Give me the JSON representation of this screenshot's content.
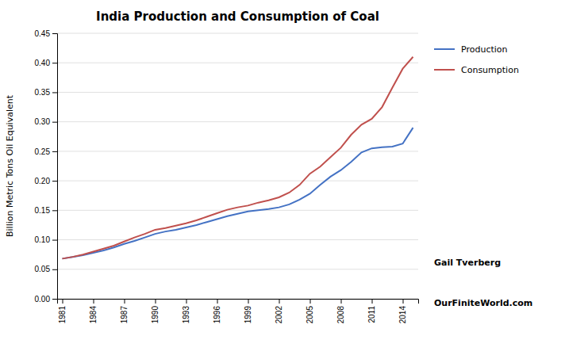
{
  "chart_data": {
    "type": "line",
    "title": "India Production and Consumption of Coal",
    "ylabel": "Billion Metric Tons Oil Equivalent",
    "x": [
      1981,
      1982,
      1983,
      1984,
      1985,
      1986,
      1987,
      1988,
      1989,
      1990,
      1991,
      1992,
      1993,
      1994,
      1995,
      1996,
      1997,
      1998,
      1999,
      2000,
      2001,
      2002,
      2003,
      2004,
      2005,
      2006,
      2007,
      2008,
      2009,
      2010,
      2011,
      2012,
      2013,
      2014,
      2015
    ],
    "series": [
      {
        "name": "Production",
        "color": "#4472C4",
        "values": [
          0.068,
          0.071,
          0.074,
          0.078,
          0.082,
          0.087,
          0.093,
          0.098,
          0.104,
          0.11,
          0.114,
          0.117,
          0.121,
          0.125,
          0.13,
          0.135,
          0.14,
          0.144,
          0.148,
          0.15,
          0.152,
          0.155,
          0.16,
          0.168,
          0.178,
          0.193,
          0.207,
          0.218,
          0.232,
          0.248,
          0.255,
          0.257,
          0.258,
          0.263,
          0.29
        ]
      },
      {
        "name": "Consumption",
        "color": "#C0504D",
        "values": [
          0.068,
          0.071,
          0.075,
          0.08,
          0.085,
          0.09,
          0.097,
          0.104,
          0.11,
          0.117,
          0.12,
          0.124,
          0.128,
          0.133,
          0.139,
          0.145,
          0.151,
          0.155,
          0.158,
          0.163,
          0.167,
          0.172,
          0.18,
          0.193,
          0.212,
          0.224,
          0.24,
          0.256,
          0.278,
          0.295,
          0.305,
          0.325,
          0.358,
          0.39,
          0.41
        ]
      }
    ],
    "xlim": [
      1980.5,
      2015.5
    ],
    "xticks": [
      1981,
      1984,
      1987,
      1990,
      1993,
      1996,
      1999,
      2002,
      2005,
      2008,
      2011,
      2014
    ],
    "ylim": [
      0.0,
      0.45
    ],
    "yticks": [
      {
        "value": 0.0,
        "label": "0.00"
      },
      {
        "value": 0.05,
        "label": "0.05"
      },
      {
        "value": 0.1,
        "label": "0.10"
      },
      {
        "value": 0.15,
        "label": "0.15"
      },
      {
        "value": 0.2,
        "label": "0.20"
      },
      {
        "value": 0.25,
        "label": "0.25"
      },
      {
        "value": 0.3,
        "label": "0.30"
      },
      {
        "value": 0.35,
        "label": "0.35"
      },
      {
        "value": 0.4,
        "label": "0.40"
      },
      {
        "value": 0.45,
        "label": "0.45"
      }
    ],
    "grid": true,
    "legend": "right",
    "annotations": [
      "Gail Tverberg",
      "OurFiniteWorld.com"
    ]
  }
}
